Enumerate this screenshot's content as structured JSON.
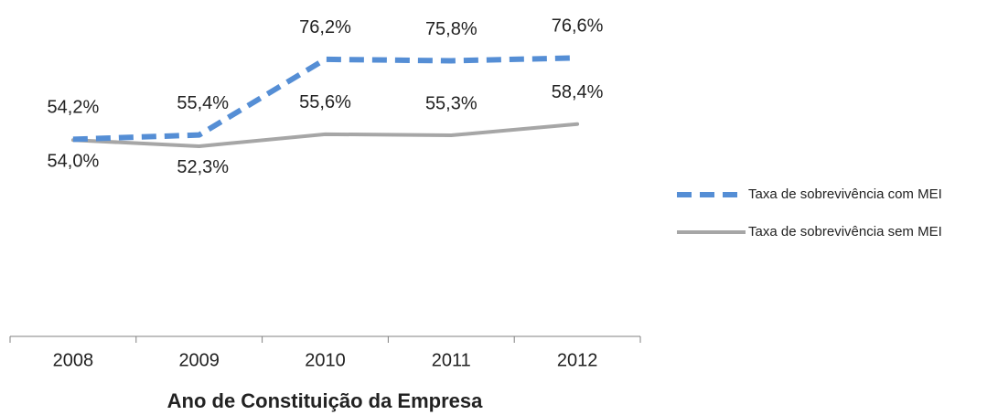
{
  "chart_data": {
    "type": "line",
    "x_label": "Ano de Constituição da Empresa",
    "categories": [
      "2008",
      "2009",
      "2010",
      "2011",
      "2012"
    ],
    "series": [
      {
        "name": "Taxa de sobrevivência com MEI",
        "color": "#558ed5",
        "dashed": true,
        "values": [
          54.2,
          55.4,
          76.2,
          75.8,
          76.6
        ],
        "value_labels": [
          "54,2%",
          "55,4%",
          "76,2%",
          "75,8%",
          "76,6%"
        ]
      },
      {
        "name": "Taxa de sobrevivência sem MEI",
        "color": "#a6a6a6",
        "dashed": false,
        "values": [
          54.0,
          52.3,
          55.6,
          55.3,
          58.4
        ],
        "value_labels": [
          "54,0%",
          "52,3%",
          "55,6%",
          "55,3%",
          "58,4%"
        ]
      }
    ],
    "ylim": [
      0,
      90
    ],
    "legend": "right"
  }
}
